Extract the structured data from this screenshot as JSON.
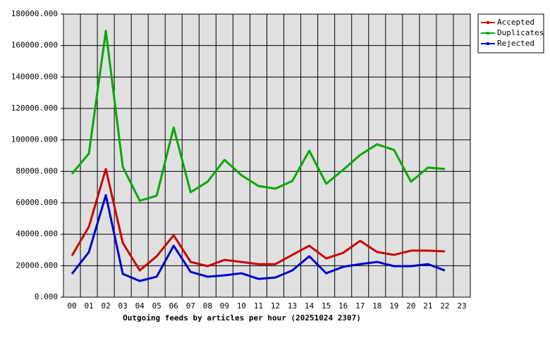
{
  "chart_data": {
    "type": "line",
    "title": "Outgoing feeds by articles per hour (20251024 2307)",
    "categories": [
      "00",
      "01",
      "02",
      "03",
      "04",
      "05",
      "06",
      "07",
      "08",
      "09",
      "10",
      "11",
      "12",
      "13",
      "14",
      "15",
      "16",
      "17",
      "18",
      "19",
      "20",
      "21",
      "22",
      "23"
    ],
    "series": [
      {
        "name": "Accepted",
        "color": "#cc0000",
        "values": [
          26400,
          44800,
          81500,
          34500,
          17000,
          26000,
          39400,
          22400,
          19700,
          23700,
          22400,
          21000,
          21000,
          26900,
          32700,
          24600,
          28200,
          35800,
          28700,
          26900,
          29600,
          29600,
          29100,
          null
        ]
      },
      {
        "name": "Duplicates",
        "color": "#00aa00",
        "values": [
          78400,
          91300,
          169300,
          82800,
          61300,
          64500,
          107900,
          66700,
          73400,
          87300,
          77500,
          70700,
          69000,
          73900,
          93100,
          72100,
          81000,
          90400,
          97200,
          93600,
          73400,
          82400,
          81500,
          null
        ]
      },
      {
        "name": "Rejected",
        "color": "#0000cc",
        "values": [
          14800,
          28700,
          64900,
          14800,
          10300,
          13000,
          32700,
          16100,
          13000,
          13900,
          15200,
          11600,
          12500,
          17000,
          26000,
          15200,
          19300,
          21000,
          22400,
          19700,
          19700,
          21000,
          17000,
          null
        ]
      }
    ],
    "ylim": [
      0,
      180000
    ],
    "yticks": [
      {
        "value": 0,
        "label": "0.000"
      },
      {
        "value": 20000,
        "label": "20000.000"
      },
      {
        "value": 40000,
        "label": "40000.000"
      },
      {
        "value": 60000,
        "label": "60000.000"
      },
      {
        "value": 80000,
        "label": "80000.000"
      },
      {
        "value": 100000,
        "label": "100000.000"
      },
      {
        "value": 120000,
        "label": "120000.000"
      },
      {
        "value": 140000,
        "label": "140000.000"
      },
      {
        "value": 160000,
        "label": "160000.000"
      },
      {
        "value": 180000,
        "label": "180000.000"
      }
    ],
    "grid": true,
    "legend": "right"
  }
}
